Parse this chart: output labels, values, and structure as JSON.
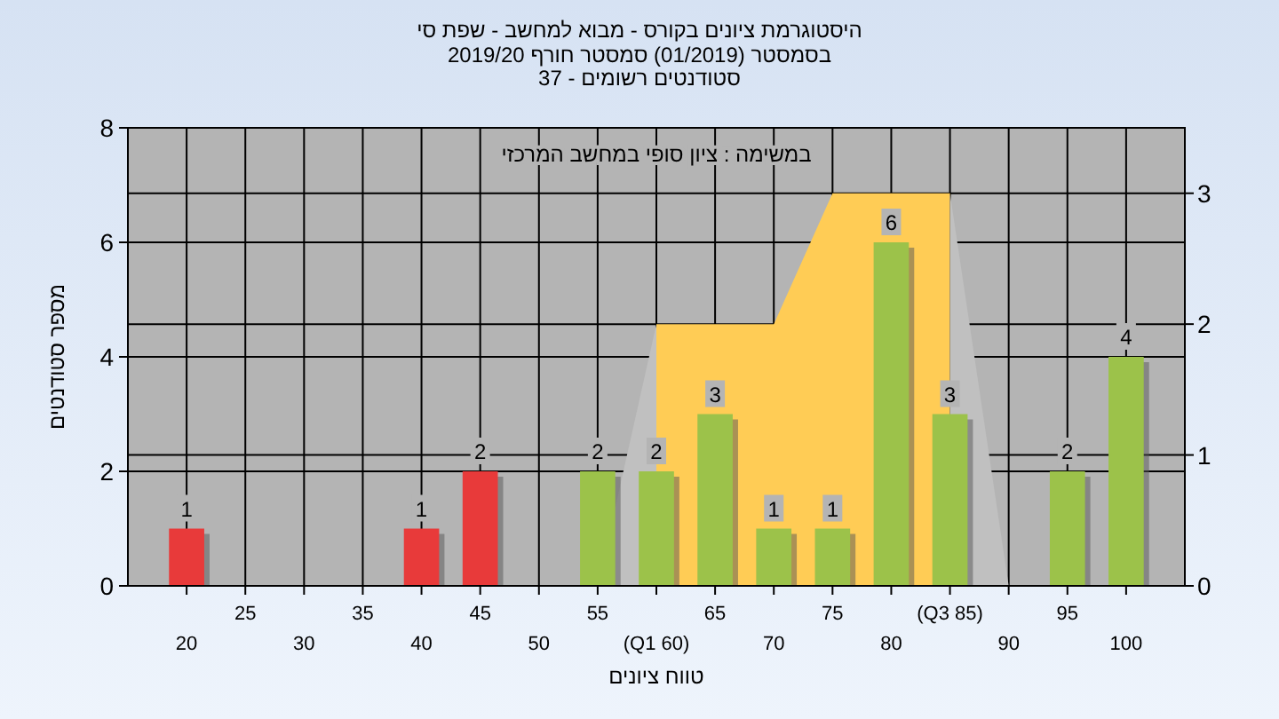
{
  "chart_data": {
    "type": "bar",
    "title": "היסטוגרמת ציונים בקורס - מבוא למחשב - שפת סי",
    "subtitle": "בסמסטר  (01/2019)  סמסטר חורף 2019/20\nסטודנטים רשומים - 37",
    "xlabel": "טווח ציונים",
    "ylabel": "מספר סטודנטים",
    "annotations": [
      "במשימה : ציון סופי במחשב המרכזי"
    ],
    "categories": [
      "20",
      "25",
      "30",
      "35",
      "40",
      "45",
      "50",
      "55",
      "(Q1 60)",
      "65",
      "70",
      "75",
      "80",
      "(Q3 85)",
      "90",
      "95",
      "100"
    ],
    "series": [
      {
        "type": "area",
        "axis": "y2",
        "color": "#ffcc55",
        "values": [
          null,
          null,
          null,
          null,
          null,
          null,
          null,
          null,
          2,
          2,
          2,
          3,
          3,
          3,
          null,
          null,
          null
        ]
      },
      {
        "type": "area",
        "axis": "y2",
        "color": "#c0c0c0",
        "values": [
          null,
          null,
          null,
          null,
          null,
          null,
          null,
          0,
          2,
          null,
          null,
          null,
          null,
          null,
          null,
          null,
          null
        ]
      },
      {
        "type": "area",
        "axis": "y2",
        "color": "#c0c0c0",
        "values": [
          null,
          null,
          null,
          null,
          null,
          null,
          null,
          null,
          null,
          null,
          null,
          null,
          null,
          3,
          0,
          null,
          null
        ]
      },
      {
        "colors": [
          "#e83a3a",
          null,
          null,
          null,
          "#e83a3a",
          "#e83a3a",
          null,
          "#9cc24a",
          "#9cc24a",
          "#9cc24a",
          "#9cc24a",
          "#9cc24a",
          "#9cc24a",
          "#9cc24a",
          null,
          "#9cc24a",
          "#9cc24a"
        ],
        "values": [
          1,
          null,
          null,
          null,
          1,
          2,
          null,
          2,
          2,
          3,
          1,
          1,
          6,
          3,
          null,
          2,
          4
        ],
        "value_labels": [
          "1",
          null,
          null,
          null,
          "1",
          "2",
          null,
          "2",
          "2",
          "3",
          "1",
          "1",
          "6",
          "3",
          null,
          "2",
          "4"
        ]
      }
    ],
    "ylim": [
      0,
      8
    ],
    "yticks": [
      0,
      2,
      4,
      6,
      8
    ],
    "y2lim": [
      0,
      3.5
    ],
    "y2ticks": [
      0,
      1,
      2,
      3
    ],
    "grid": true
  }
}
